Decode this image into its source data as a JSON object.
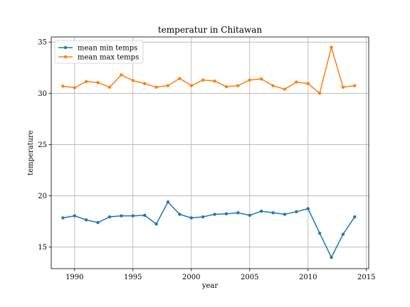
{
  "chart_data": {
    "type": "line",
    "title": "temperatur in Chitawan",
    "xlabel": "year",
    "ylabel": "temperature",
    "xlim": [
      1988,
      2015.2
    ],
    "ylim": [
      12.9,
      35.5
    ],
    "xticks": [
      1990,
      1995,
      2000,
      2005,
      2010,
      2015
    ],
    "yticks": [
      15,
      20,
      25,
      30,
      35
    ],
    "grid": true,
    "legend_position": "upper-left",
    "x": [
      1989,
      1990,
      1991,
      1992,
      1993,
      1994,
      1995,
      1996,
      1997,
      1998,
      1999,
      2000,
      2001,
      2002,
      2003,
      2004,
      2005,
      2006,
      2007,
      2008,
      2009,
      2010,
      2011,
      2012,
      2013,
      2014
    ],
    "series": [
      {
        "name": "mean min temps",
        "color": "#1f77b4",
        "values": [
          17.85,
          18.05,
          17.65,
          17.4,
          17.95,
          18.05,
          18.05,
          18.1,
          17.25,
          19.4,
          18.2,
          17.85,
          17.95,
          18.2,
          18.25,
          18.35,
          18.1,
          18.5,
          18.35,
          18.2,
          18.45,
          18.75,
          16.35,
          14.0,
          16.25,
          17.95
        ]
      },
      {
        "name": "mean max temps",
        "color": "#ff7f0e",
        "values": [
          30.7,
          30.55,
          31.15,
          31.05,
          30.6,
          31.8,
          31.25,
          30.95,
          30.6,
          30.75,
          31.45,
          30.75,
          31.3,
          31.2,
          30.65,
          30.75,
          31.3,
          31.4,
          30.75,
          30.4,
          31.1,
          30.95,
          30.0,
          34.5,
          30.6,
          30.75
        ]
      }
    ]
  }
}
